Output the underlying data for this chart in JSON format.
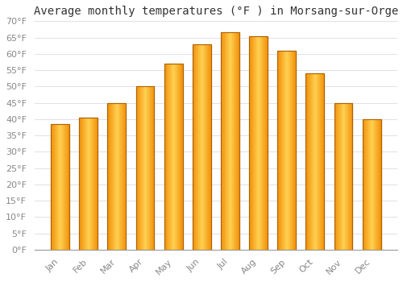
{
  "title": "Average monthly temperatures (°F ) in Morsang-sur-Orge",
  "months": [
    "Jan",
    "Feb",
    "Mar",
    "Apr",
    "May",
    "Jun",
    "Jul",
    "Aug",
    "Sep",
    "Oct",
    "Nov",
    "Dec"
  ],
  "values": [
    38.5,
    40.5,
    45.0,
    50.0,
    57.0,
    63.0,
    66.5,
    65.5,
    61.0,
    54.0,
    45.0,
    40.0
  ],
  "bar_color_center": "#FFD050",
  "bar_color_edge": "#F0900A",
  "bar_outline_color": "#B06000",
  "ylim": [
    0,
    70
  ],
  "yticks": [
    0,
    5,
    10,
    15,
    20,
    25,
    30,
    35,
    40,
    45,
    50,
    55,
    60,
    65,
    70
  ],
  "background_color": "#ffffff",
  "grid_color": "#e0e0e8",
  "title_fontsize": 10,
  "tick_fontsize": 8,
  "tick_label_color": "#888888",
  "figsize": [
    5.0,
    3.5
  ],
  "dpi": 100
}
